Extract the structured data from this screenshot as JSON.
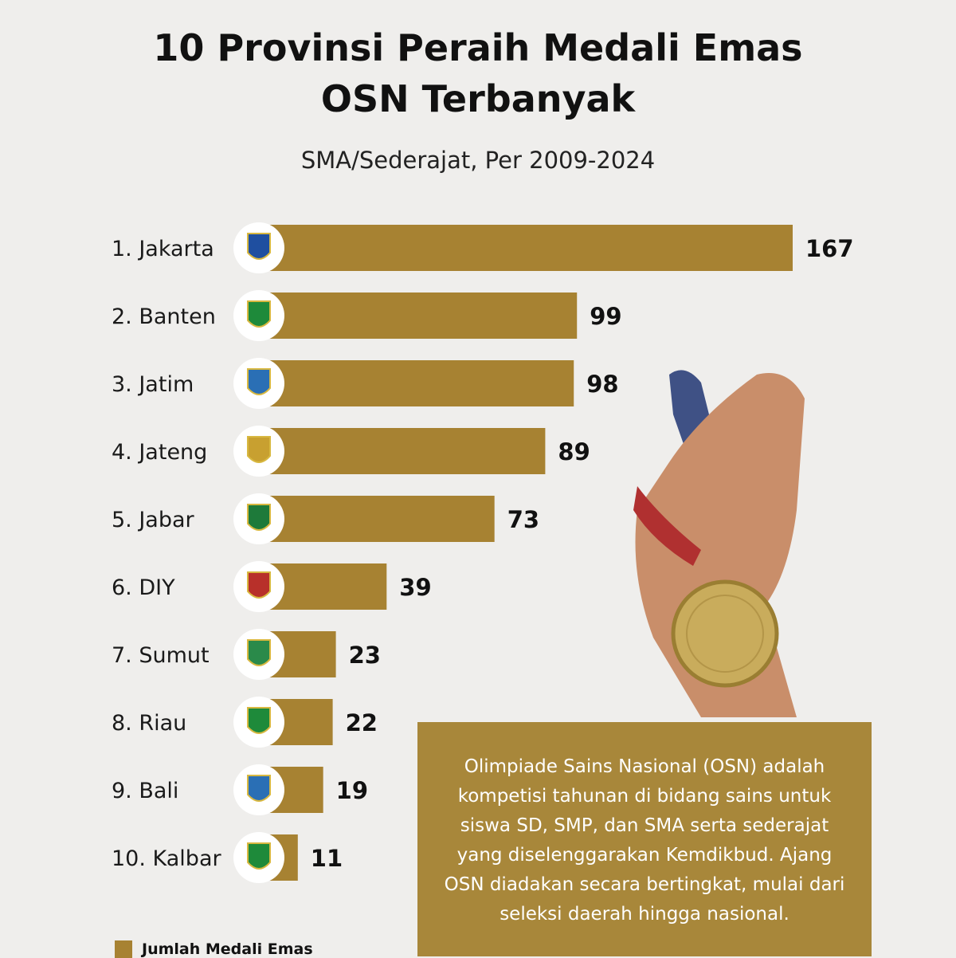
{
  "title_line1": "10 Provinsi Peraih Medali Emas",
  "title_line2": "OSN Terbanyak",
  "subtitle": "SMA/Sederajat, Per 2009-2024",
  "info_text": "Olimpiade Sains Nasional (OSN) adalah kompetisi tahunan di bidang sains untuk siswa SD, SMP, dan SMA serta sederajat yang diselenggarakan Kemdikbud. Ajang OSN diadakan secara bertingkat, mulai dari seleksi daerah hingga nasional.",
  "colors": {
    "bar": "#a78232",
    "infobox": "#a8873a",
    "background": "#efeeec"
  },
  "chart_data": {
    "type": "bar",
    "orientation": "horizontal",
    "categories": [
      "1. Jakarta",
      "2. Banten",
      "3. Jatim",
      "4. Jateng",
      "5. Jabar",
      "6. DIY",
      "7. Sumut",
      "8. Riau",
      "9. Bali",
      "10. Kalbar"
    ],
    "series": [
      {
        "name": "Jumlah Medali Emas",
        "values": [
          167,
          99,
          98,
          89,
          73,
          39,
          23,
          22,
          19,
          11
        ]
      }
    ],
    "data_labels": true,
    "legend": "bottom-left",
    "grid": false,
    "category_icons": "provincial-emblem"
  }
}
